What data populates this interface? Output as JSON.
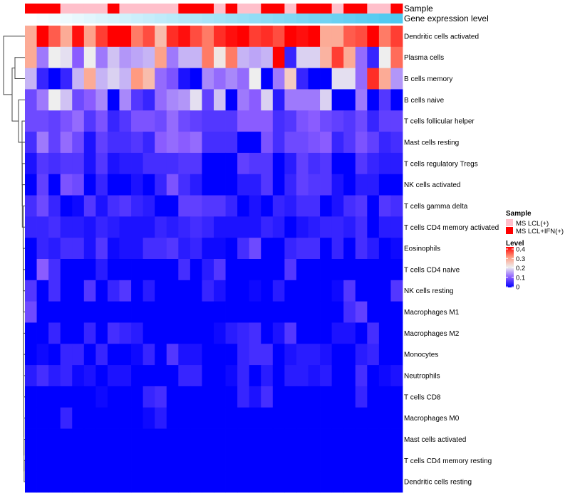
{
  "chart_data": {
    "type": "heatmap",
    "title": "",
    "column_annotations": {
      "sample_label": "Sample",
      "gene_label": "Gene expression level",
      "sample_groups": [
        1,
        1,
        1,
        0,
        0,
        0,
        0,
        1,
        0,
        0,
        0,
        0,
        0,
        1,
        1,
        1,
        0,
        1,
        0,
        0,
        1,
        1,
        0,
        1,
        1,
        1,
        0,
        1,
        1,
        0,
        0,
        1
      ],
      "gene_expression_level": [
        0,
        0.032,
        0.065,
        0.097,
        0.129,
        0.161,
        0.194,
        0.226,
        0.258,
        0.29,
        0.323,
        0.355,
        0.387,
        0.419,
        0.452,
        0.484,
        0.516,
        0.548,
        0.581,
        0.613,
        0.645,
        0.677,
        0.71,
        0.742,
        0.774,
        0.806,
        0.839,
        0.871,
        0.903,
        0.935,
        0.968,
        1
      ]
    },
    "rows": [
      "Dendritic cells activated",
      "Plasma cells",
      "B cells memory",
      "B cells naive",
      "T cells follicular helper",
      "Mast cells resting",
      "T cells regulatory  Tregs",
      "NK cells activated",
      "T cells gamma delta",
      "T cells CD4 memory activated",
      "Eosinophils",
      "T cells CD4 naive",
      "NK cells resting",
      "Macrophages M1",
      "Macrophages M2",
      "Monocytes",
      "Neutrophils",
      "T cells CD8",
      "Macrophages M0",
      "Mast cells activated",
      "T cells CD4 memory resting",
      "Dendritic cells resting"
    ],
    "values": [
      [
        0.28,
        0.4,
        0.34,
        0.28,
        0.39,
        0.29,
        0.36,
        0.4,
        0.4,
        0.32,
        0.35,
        0.26,
        0.37,
        0.39,
        0.35,
        0.32,
        0.37,
        0.39,
        0.4,
        0.36,
        0.37,
        0.35,
        0.4,
        0.39,
        0.4,
        0.28,
        0.28,
        0.34,
        0.35,
        0.4,
        0.32,
        0.36
      ],
      [
        0.28,
        0.12,
        0.2,
        0.19,
        0.1,
        0.2,
        0.12,
        0.17,
        0.14,
        0.15,
        0.16,
        0.29,
        0.12,
        0.16,
        0.16,
        0.32,
        0.21,
        0.32,
        0.16,
        0.15,
        0.16,
        0.4,
        0.04,
        0.18,
        0.18,
        0.27,
        0.36,
        0.28,
        0.11,
        0.04,
        0.2,
        0.33
      ],
      [
        0.16,
        0.04,
        0,
        0.04,
        0.16,
        0.28,
        0.16,
        0.18,
        0.16,
        0.3,
        0.26,
        0.11,
        0.09,
        0.02,
        0,
        0.13,
        0.11,
        0.13,
        0.11,
        0.2,
        0,
        0.12,
        0.24,
        0.04,
        0,
        0,
        0.19,
        0.19,
        0.11,
        0.37,
        0.28,
        0.14
      ],
      [
        0.08,
        0.12,
        0.2,
        0.17,
        0.08,
        0.1,
        0.13,
        0,
        0.13,
        0.06,
        0.04,
        0.11,
        0.13,
        0.14,
        0.19,
        0.07,
        0.17,
        0,
        0.12,
        0.1,
        0.18,
        0.03,
        0.12,
        0.12,
        0.12,
        0.18,
        0,
        0,
        0.12,
        0,
        0.06,
        0
      ],
      [
        0.08,
        0.08,
        0.07,
        0.09,
        0.11,
        0.06,
        0.09,
        0.04,
        0.06,
        0.09,
        0.09,
        0.08,
        0.11,
        0.08,
        0.07,
        0.06,
        0.06,
        0.06,
        0.1,
        0.1,
        0.1,
        0.05,
        0.06,
        0.09,
        0.1,
        0.08,
        0.07,
        0.06,
        0.08,
        0.04,
        0.07,
        0.07
      ],
      [
        0.05,
        0.12,
        0.07,
        0.11,
        0.08,
        0.02,
        0.07,
        0.05,
        0.05,
        0.06,
        0.04,
        0.1,
        0.11,
        0.1,
        0.11,
        0.05,
        0.05,
        0.05,
        0,
        0,
        0.09,
        0.05,
        0.08,
        0.08,
        0.09,
        0.1,
        0.04,
        0.06,
        0.09,
        0.07,
        0.04,
        0.05
      ],
      [
        0.02,
        0.06,
        0.05,
        0.06,
        0.06,
        0.02,
        0.06,
        0.02,
        0.03,
        0.03,
        0.05,
        0.05,
        0.05,
        0.06,
        0.06,
        0,
        0,
        0,
        0.07,
        0.06,
        0.06,
        0,
        0.03,
        0.07,
        0.05,
        0.06,
        0,
        0,
        0.06,
        0.04,
        0.03,
        0.03
      ],
      [
        0,
        0.07,
        0,
        0.09,
        0.08,
        0,
        0.04,
        0,
        0,
        0.02,
        0,
        0.04,
        0.09,
        0.05,
        0.03,
        0,
        0,
        0,
        0.03,
        0.03,
        0.06,
        0,
        0.04,
        0.07,
        0.06,
        0.06,
        0.02,
        0,
        0.03,
        0.03,
        0,
        0
      ],
      [
        0.05,
        0.08,
        0.04,
        0,
        0.01,
        0.06,
        0.02,
        0.05,
        0.06,
        0.04,
        0.03,
        0,
        0,
        0.07,
        0.07,
        0.06,
        0.06,
        0.04,
        0,
        0.02,
        0,
        0.04,
        0.03,
        0.05,
        0.05,
        0,
        0.02,
        0.05,
        0.06,
        0,
        0.06,
        0.05
      ],
      [
        0.04,
        0.04,
        0.05,
        0.03,
        0.03,
        0.02,
        0.04,
        0.03,
        0.02,
        0.02,
        0.02,
        0.04,
        0.03,
        0.04,
        0.05,
        0.04,
        0.02,
        0.02,
        0.02,
        0.02,
        0.04,
        0.03,
        0,
        0.02,
        0.03,
        0.04,
        0.04,
        0.03,
        0.05,
        0,
        0.03,
        0.03
      ],
      [
        0,
        0.04,
        0.03,
        0.05,
        0.05,
        0.02,
        0.06,
        0.01,
        0.02,
        0.02,
        0.05,
        0.05,
        0.06,
        0.03,
        0.04,
        0.01,
        0.01,
        0,
        0.05,
        0.08,
        0,
        0,
        0.04,
        0.05,
        0.05,
        0,
        0.04,
        0,
        0.05,
        0.03,
        0,
        0.01
      ],
      [
        0,
        0.1,
        0.05,
        0,
        0,
        0,
        0.03,
        0,
        0,
        0,
        0,
        0,
        0,
        0.05,
        0,
        0.03,
        0.06,
        0,
        0,
        0,
        0,
        0,
        0.06,
        0,
        0,
        0,
        0,
        0,
        0,
        0,
        0,
        0
      ],
      [
        0.06,
        0,
        0.05,
        0,
        0,
        0.06,
        0,
        0.04,
        0.06,
        0,
        0.03,
        0,
        0,
        0,
        0,
        0.04,
        0.02,
        0,
        0,
        0.01,
        0,
        0.03,
        0,
        0,
        0,
        0,
        0.01,
        0.06,
        0,
        0,
        0,
        0.06
      ],
      [
        0.08,
        0,
        0,
        0,
        0,
        0,
        0,
        0,
        0,
        0,
        0,
        0,
        0,
        0,
        0,
        0,
        0,
        0,
        0,
        0,
        0,
        0,
        0,
        0,
        0,
        0,
        0,
        0.05,
        0.07,
        0,
        0,
        0
      ],
      [
        0,
        0,
        0.04,
        0,
        0,
        0.04,
        0,
        0.05,
        0.04,
        0.03,
        0,
        0,
        0,
        0,
        0,
        0,
        0.01,
        0.03,
        0.04,
        0.05,
        0,
        0.02,
        0.06,
        0,
        0,
        0,
        0.02,
        0.02,
        0,
        0.05,
        0,
        0
      ],
      [
        0,
        0.01,
        0,
        0.04,
        0.04,
        0,
        0.04,
        0,
        0,
        0.01,
        0.04,
        0,
        0.06,
        0.02,
        0.02,
        0,
        0,
        0,
        0.04,
        0.05,
        0.05,
        0,
        0.02,
        0.03,
        0.03,
        0.02,
        0,
        0,
        0.03,
        0.04,
        0,
        0
      ],
      [
        0.03,
        0.05,
        0.03,
        0.04,
        0.01,
        0.02,
        0,
        0.02,
        0.02,
        0,
        0,
        0,
        0,
        0.04,
        0.04,
        0,
        0,
        0.01,
        0.04,
        0,
        0.03,
        0,
        0.03,
        0.03,
        0.02,
        0.03,
        0,
        0,
        0.05,
        0,
        0.01,
        0.02
      ],
      [
        0,
        0,
        0,
        0,
        0,
        0,
        0.01,
        0,
        0,
        0,
        0.04,
        0.05,
        0,
        0,
        0,
        0,
        0,
        0,
        0.04,
        0.02,
        0.05,
        0,
        0,
        0,
        0,
        0,
        0,
        0,
        0.04,
        0,
        0,
        0
      ],
      [
        0,
        0,
        0,
        0.04,
        0,
        0,
        0,
        0,
        0,
        0,
        0.01,
        0.03,
        0,
        0,
        0,
        0,
        0,
        0,
        0,
        0,
        0,
        0,
        0,
        0,
        0,
        0,
        0,
        0,
        0,
        0,
        0,
        0
      ],
      [
        0,
        0,
        0,
        0,
        0,
        0,
        0,
        0,
        0,
        0,
        0,
        0,
        0,
        0,
        0,
        0,
        0,
        0,
        0,
        0,
        0,
        0,
        0,
        0,
        0,
        0,
        0,
        0,
        0,
        0,
        0,
        0
      ],
      [
        0,
        0,
        0,
        0,
        0,
        0,
        0,
        0,
        0,
        0,
        0,
        0,
        0,
        0,
        0,
        0,
        0,
        0,
        0,
        0,
        0,
        0,
        0,
        0,
        0,
        0,
        0,
        0,
        0,
        0,
        0,
        0
      ],
      [
        0,
        0,
        0,
        0,
        0,
        0,
        0,
        0,
        0,
        0,
        0,
        0,
        0,
        0,
        0,
        0,
        0,
        0,
        0,
        0,
        0,
        0,
        0,
        0,
        0,
        0,
        0,
        0,
        0,
        0,
        0,
        0
      ]
    ],
    "color_range": [
      0,
      0.4
    ],
    "colors": {
      "low": "#0000ff",
      "mid": "#eeeeee",
      "high": "#ff0000",
      "gene_high": "#4dc8f0"
    },
    "legend": {
      "position": "right",
      "sample_title": "Sample",
      "sample_entries": [
        {
          "label": "MS LCL(+)",
          "color": "#ffc0cb"
        },
        {
          "label": "MS LCL+IFN(+)",
          "color": "#ff0000"
        }
      ],
      "level_title": "Level",
      "level_ticks": [
        "0.4",
        "0.3",
        "0.2",
        "0.1",
        "0"
      ]
    }
  }
}
